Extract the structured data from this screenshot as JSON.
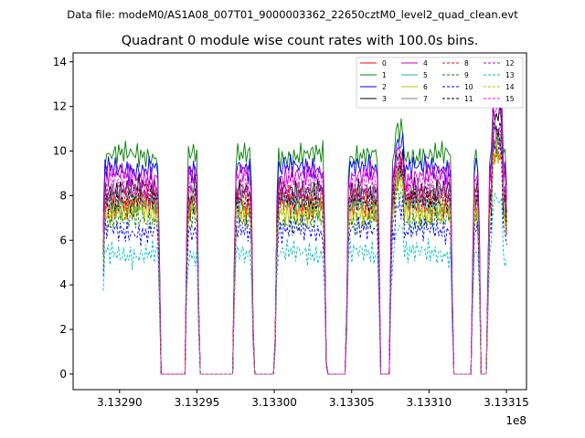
{
  "header": {
    "file_label": "Data file: modeM0/AS1A08_007T01_9000003362_22650cztM0_level2_quad_clean.evt"
  },
  "chart_data": {
    "type": "line",
    "title": "Quadrant 0 module wise count rates with 100.0s bins.",
    "xlabel": "",
    "ylabel": "",
    "x_offset_label": "1e8",
    "xlim": [
      3.13287,
      3.133163
    ],
    "ylim": [
      -0.7,
      14.4
    ],
    "xticks": [
      3.1329,
      3.13295,
      3.133,
      3.13305,
      3.1331,
      3.13315
    ],
    "xtick_labels": [
      "3.13290",
      "3.13295",
      "3.13300",
      "3.13305",
      "3.13310",
      "3.13315"
    ],
    "yticks": [
      0,
      2,
      4,
      6,
      8,
      10,
      12,
      14
    ],
    "ytick_labels": [
      "0",
      "2",
      "4",
      "6",
      "8",
      "10",
      "12",
      "14"
    ],
    "legend_position": "top-right",
    "active_segments": [
      {
        "start": 3.13289,
        "end": 3.132925
      },
      {
        "start": 3.132944,
        "end": 3.13295
      },
      {
        "start": 3.132975,
        "end": 3.132985
      },
      {
        "start": 3.133002,
        "end": 3.133032
      },
      {
        "start": 3.133048,
        "end": 3.133067
      },
      {
        "start": 3.133076,
        "end": 3.133114
      },
      {
        "start": 3.133129,
        "end": 3.133132
      },
      {
        "start": 3.133139,
        "end": 3.13315
      }
    ],
    "series": [
      {
        "name": "0",
        "color": "#ff0000",
        "dash": "solid",
        "base": 7.5
      },
      {
        "name": "1",
        "color": "#008000",
        "dash": "solid",
        "base": 9.8
      },
      {
        "name": "2",
        "color": "#0000ff",
        "dash": "solid",
        "base": 9.2
      },
      {
        "name": "3",
        "color": "#000000",
        "dash": "solid",
        "base": 8.3
      },
      {
        "name": "4",
        "color": "#bf00bf",
        "dash": "solid",
        "base": 8.9
      },
      {
        "name": "5",
        "color": "#1abc9c",
        "dash": "solid",
        "base": 7.6
      },
      {
        "name": "6",
        "color": "#bfbf00",
        "dash": "solid",
        "base": 7.2
      },
      {
        "name": "7",
        "color": "#808080",
        "dash": "solid",
        "base": 8.0
      },
      {
        "name": "8",
        "color": "#ff0000",
        "dash": "dashed",
        "base": 7.9
      },
      {
        "name": "9",
        "color": "#008000",
        "dash": "dashed",
        "base": 6.9
      },
      {
        "name": "10",
        "color": "#0000ff",
        "dash": "dashed",
        "base": 6.4
      },
      {
        "name": "11",
        "color": "#000000",
        "dash": "dashed",
        "base": 7.8
      },
      {
        "name": "12",
        "color": "#bf00bf",
        "dash": "dashed",
        "base": 8.1
      },
      {
        "name": "13",
        "color": "#00bfbf",
        "dash": "dashed",
        "base": 5.4
      },
      {
        "name": "14",
        "color": "#bfbf00",
        "dash": "dashed",
        "base": 7.4
      },
      {
        "name": "15",
        "color": "#ff00ff",
        "dash": "dashed",
        "base": 8.6
      }
    ]
  }
}
